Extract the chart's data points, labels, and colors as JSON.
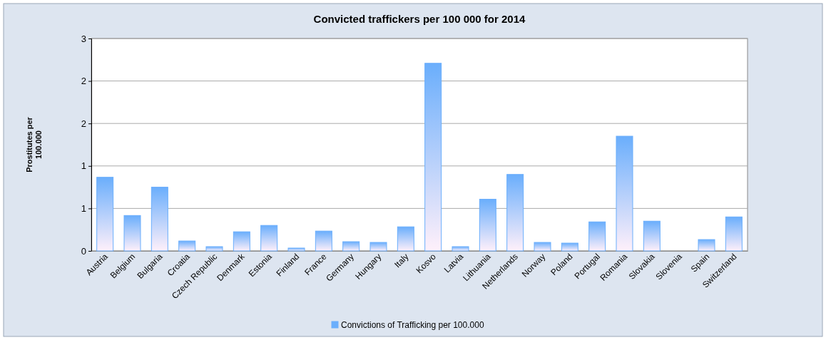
{
  "chart_data": {
    "type": "bar",
    "title": "Convicted traffickers per 100 000 for 2014",
    "ylabel": "Prostitutes per 100.000",
    "categories": [
      "Austria",
      "Belgium",
      "Bulgaria",
      "Croatia",
      "Czech Republic",
      "Denmark",
      "Estonia",
      "Finland",
      "France",
      "Germany",
      "Hungary",
      "Italy",
      "Kosvo",
      "Latvia",
      "Lithuania",
      "Netherlands",
      "Norway",
      "Poland",
      "Portugal",
      "Romania",
      "Slovakia",
      "Slovenia",
      "Spain",
      "Switzerland"
    ],
    "series": [
      {
        "name": "Convictions of Trafficking per 100.000",
        "color": "#6aaefc",
        "values": [
          1.04,
          0.5,
          0.9,
          0.14,
          0.06,
          0.27,
          0.36,
          0.04,
          0.28,
          0.13,
          0.12,
          0.34,
          2.65,
          0.06,
          0.73,
          1.08,
          0.12,
          0.11,
          0.41,
          1.62,
          0.42,
          null,
          0.16,
          0.48
        ]
      }
    ],
    "ylim": [
      0,
      3
    ],
    "yticks": [
      0,
      {
        "value": 0.6,
        "label": "1"
      },
      {
        "value": 1.2,
        "label": "1"
      },
      {
        "value": 1.8,
        "label": "2"
      },
      {
        "value": 2.4,
        "label": "2"
      },
      3
    ],
    "grid": "y",
    "legend": "bottom"
  }
}
